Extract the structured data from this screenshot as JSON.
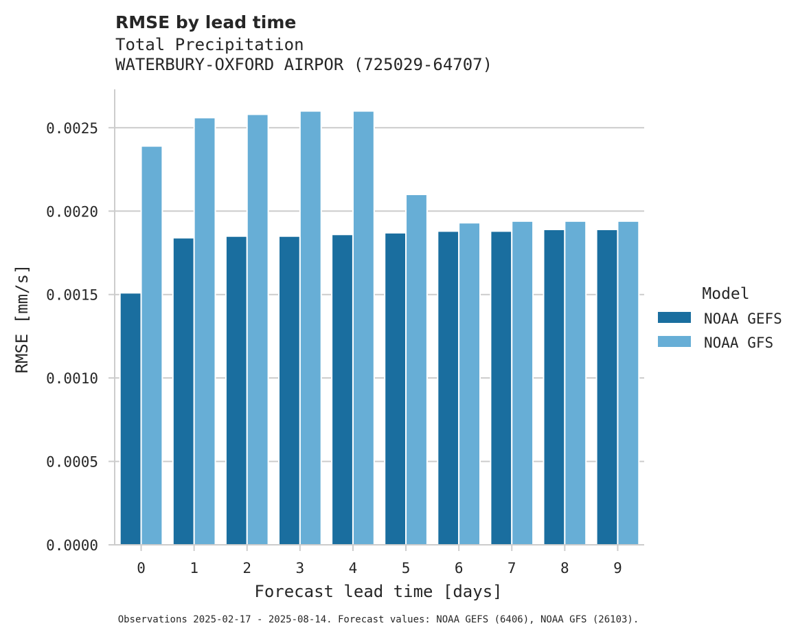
{
  "chart_data": {
    "type": "bar",
    "title": "RMSE by lead time",
    "subtitle": [
      "Total Precipitation",
      "WATERBURY-OXFORD AIRPOR (725029-64707)"
    ],
    "xlabel": "Forecast lead time [days]",
    "ylabel": "RMSE [mm/s]",
    "categories": [
      "0",
      "1",
      "2",
      "3",
      "4",
      "5",
      "6",
      "7",
      "8",
      "9"
    ],
    "ylim": [
      0,
      0.00273
    ],
    "yticks": [
      0.0,
      0.0005,
      0.001,
      0.0015,
      0.002,
      0.0025
    ],
    "ytick_labels": [
      "0.0000",
      "0.0005",
      "0.0010",
      "0.0015",
      "0.0020",
      "0.0025"
    ],
    "grid": "horizontal",
    "legend": {
      "title": "Model",
      "position": "right"
    },
    "series": [
      {
        "name": "NOAA GEFS",
        "color": "#1a6e9f",
        "values": [
          0.00151,
          0.00184,
          0.00185,
          0.00185,
          0.00186,
          0.00187,
          0.00188,
          0.00188,
          0.00189,
          0.00189
        ]
      },
      {
        "name": "NOAA GFS",
        "color": "#67aed6",
        "values": [
          0.00239,
          0.00256,
          0.00258,
          0.0026,
          0.0026,
          0.0021,
          0.00193,
          0.00194,
          0.00194,
          0.00194
        ]
      }
    ],
    "footnote": "Observations 2025-02-17 - 2025-08-14. Forecast values: NOAA GEFS (6406), NOAA GFS (26103)."
  }
}
